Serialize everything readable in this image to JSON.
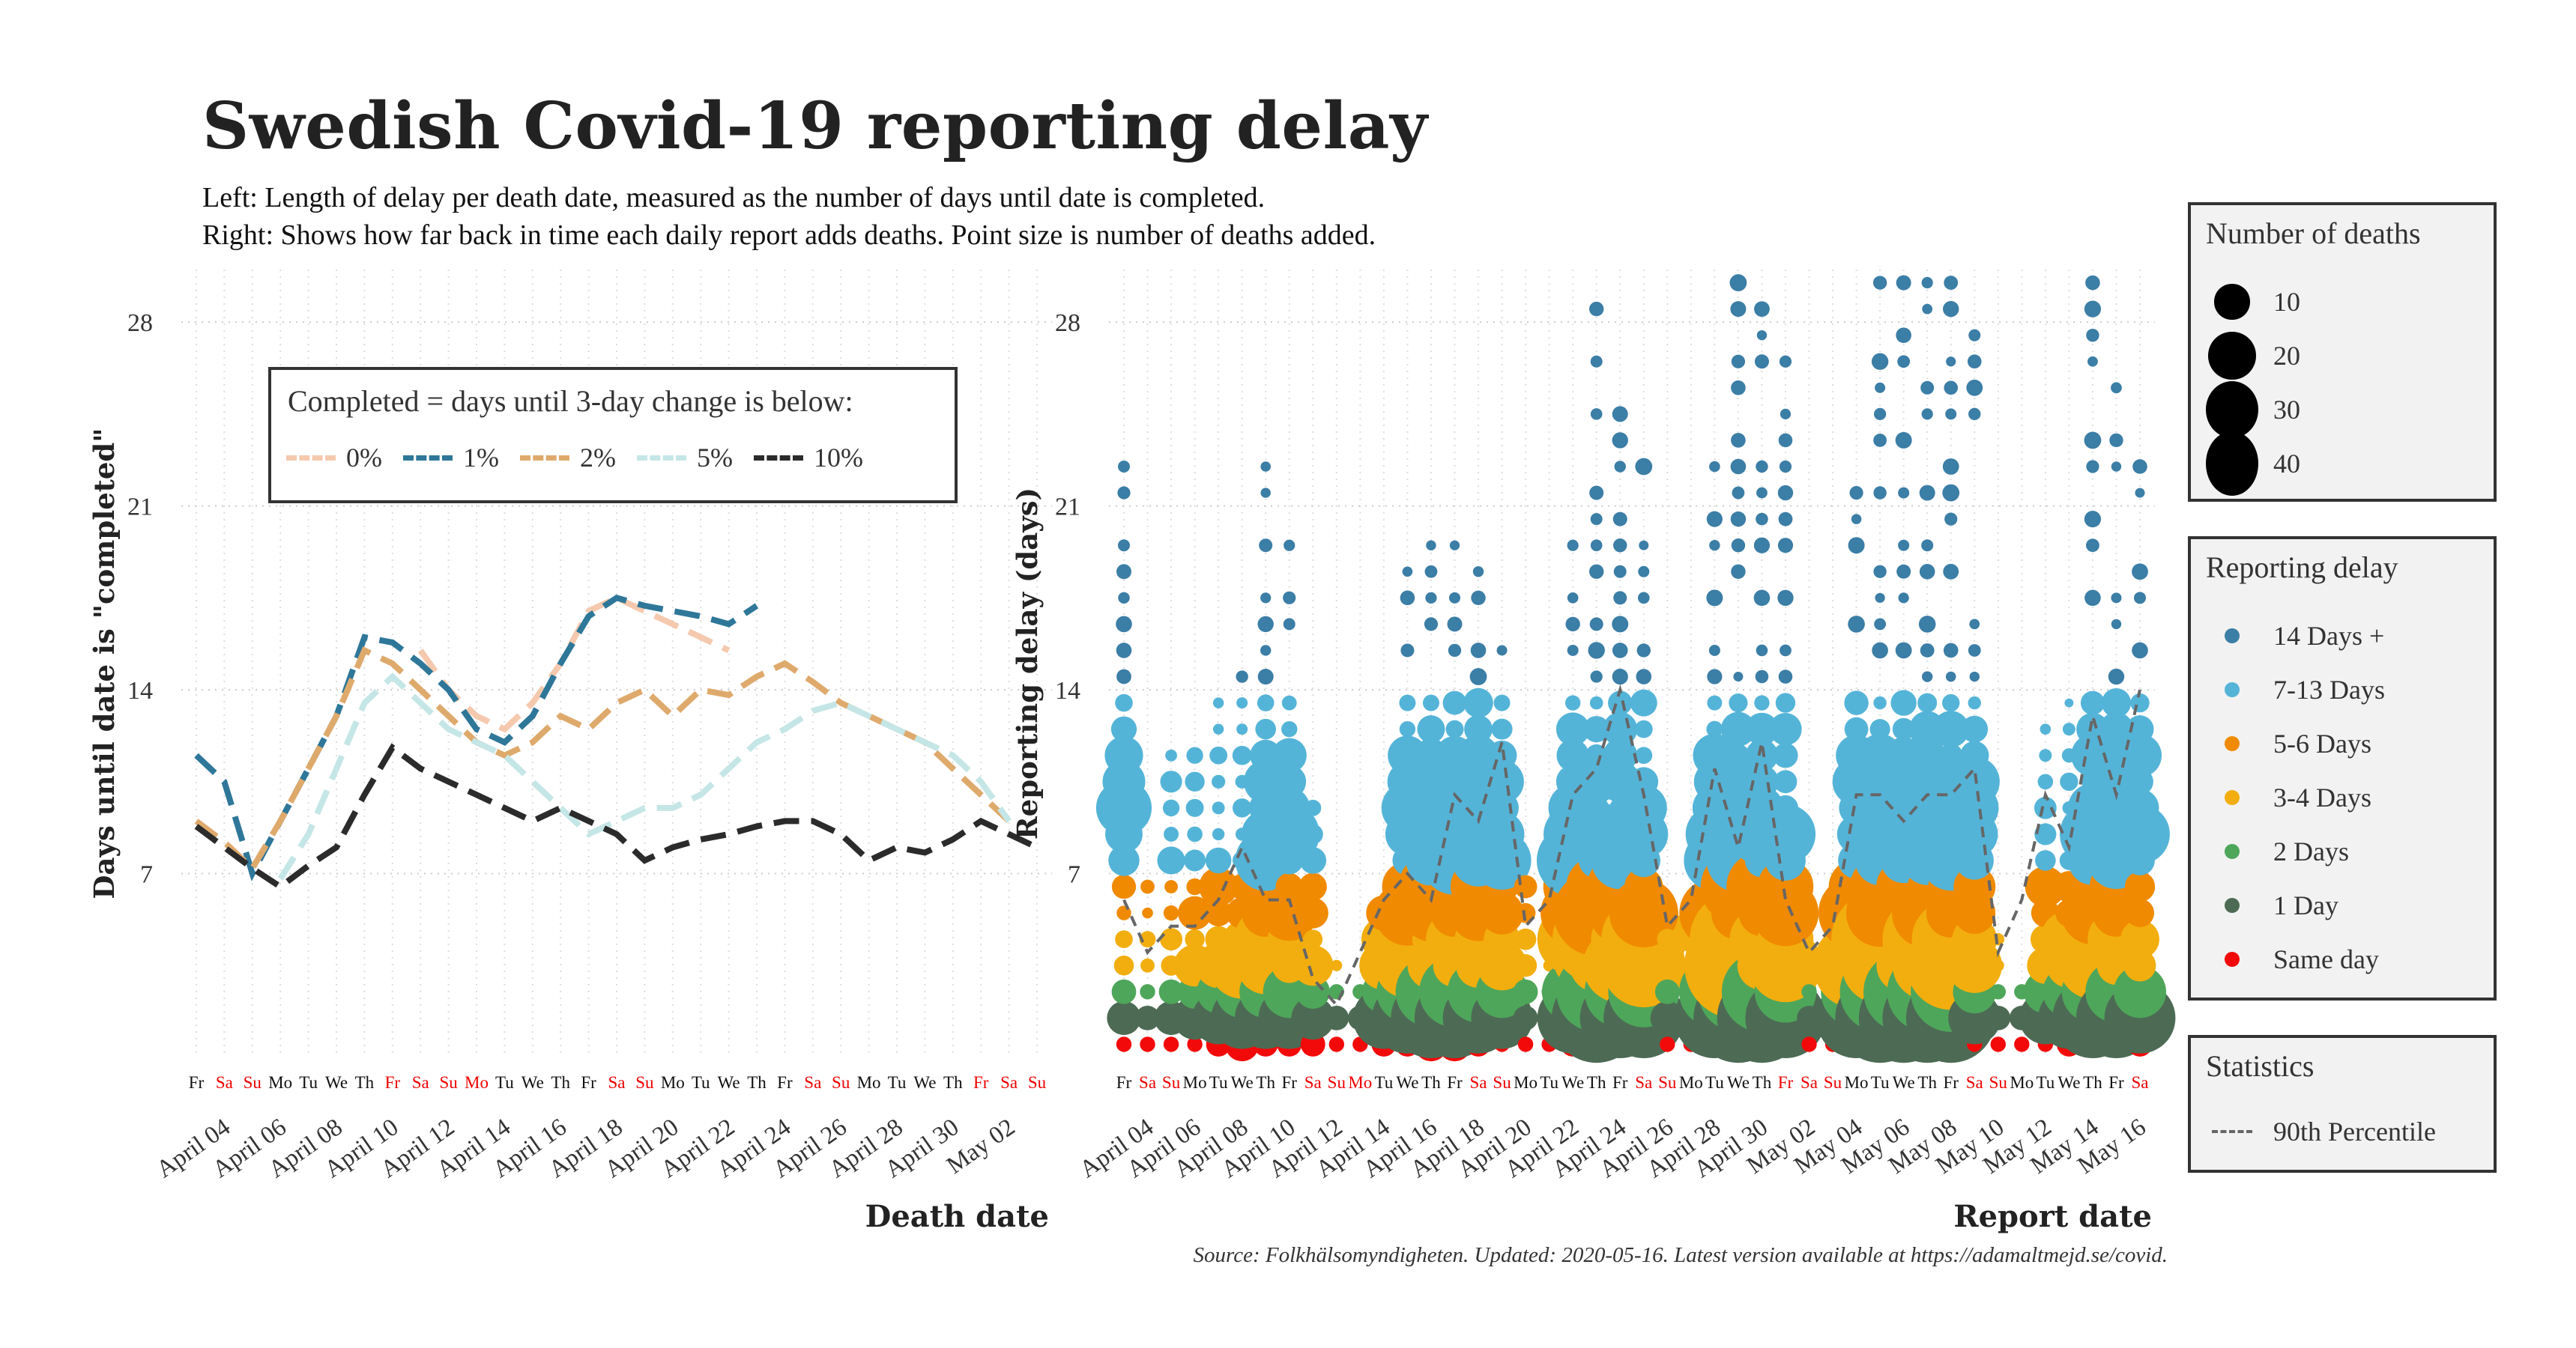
{
  "title": "Swedish Covid-19 reporting delay",
  "subtitle_lines": [
    "Left: Length of delay per death date, measured as the number of days until date is completed.",
    "Right: Shows how far back in time each daily report adds deaths. Point size is number of deaths added."
  ],
  "source": "Source: Folkhälsomyndigheten. Updated: 2020-05-16. Latest version available at https://adamaltmejd.se/covid.",
  "legend_size": {
    "title": "Number of deaths",
    "items": [
      {
        "label": "10",
        "value": 10
      },
      {
        "label": "20",
        "value": 20
      },
      {
        "label": "30",
        "value": 30
      },
      {
        "label": "40",
        "value": 40
      }
    ]
  },
  "legend_delay": {
    "title": "Reporting delay",
    "items": [
      {
        "label": "14 Days +",
        "color": "#3b7ea6"
      },
      {
        "label": "7-13 Days",
        "color": "#54b4d8"
      },
      {
        "label": "5-6 Days",
        "color": "#f08a00"
      },
      {
        "label": "3-4 Days",
        "color": "#f2ae0e"
      },
      {
        "label": "2 Days",
        "color": "#4ea65a"
      },
      {
        "label": "1 Day",
        "color": "#4d6b54"
      },
      {
        "label": "Same day",
        "color": "#f20a0a"
      }
    ]
  },
  "legend_stats": {
    "title": "Statistics",
    "items": [
      {
        "label": "90th Percentile",
        "color": "#666666"
      }
    ]
  },
  "chart_data": [
    {
      "type": "line",
      "xlabel": "Death date",
      "ylabel": "Days until date is \"completed\"",
      "ylim": [
        0,
        30
      ],
      "yticks": [
        7,
        14,
        21,
        28
      ],
      "x": [
        "2020-04-03",
        "2020-04-04",
        "2020-04-05",
        "2020-04-06",
        "2020-04-07",
        "2020-04-08",
        "2020-04-09",
        "2020-04-10",
        "2020-04-11",
        "2020-04-12",
        "2020-04-13",
        "2020-04-14",
        "2020-04-15",
        "2020-04-16",
        "2020-04-17",
        "2020-04-18",
        "2020-04-19",
        "2020-04-20",
        "2020-04-21",
        "2020-04-22",
        "2020-04-23",
        "2020-04-24",
        "2020-04-25",
        "2020-04-26",
        "2020-04-27",
        "2020-04-28",
        "2020-04-29",
        "2020-04-30",
        "2020-05-01",
        "2020-05-02",
        "2020-05-03"
      ],
      "x_tick_labels": [
        "April 04",
        "April 06",
        "April 08",
        "April 10",
        "April 12",
        "April 14",
        "April 16",
        "April 18",
        "April 20",
        "April 22",
        "April 24",
        "April 26",
        "April 28",
        "April 30",
        "May 02"
      ],
      "weekday_labels": [
        "Fr",
        "Sa",
        "Su",
        "Mo",
        "Tu",
        "We",
        "Th",
        "Fr",
        "Sa",
        "Su",
        "Mo",
        "Tu",
        "We",
        "Th",
        "Fr",
        "Sa",
        "Su",
        "Mo",
        "Tu",
        "We",
        "Th",
        "Fr",
        "Sa",
        "Su",
        "Mo",
        "Tu",
        "We",
        "Th",
        "Fr",
        "Sa",
        "Su"
      ],
      "weekday_colors": [
        "#111",
        "#e00",
        "#e00",
        "#111",
        "#111",
        "#111",
        "#111",
        "#e00",
        "#e00",
        "#e00",
        "#e00",
        "#111",
        "#111",
        "#111",
        "#111",
        "#e00",
        "#e00",
        "#111",
        "#111",
        "#111",
        "#111",
        "#111",
        "#e00",
        "#e00",
        "#111",
        "#111",
        "#111",
        "#111",
        "#e00",
        "#e00",
        "#e00"
      ],
      "legend_title": "Completed = days until 3-day change is below:",
      "series": [
        {
          "name": "0%",
          "color": "#f5c9ae",
          "values": [
            null,
            null,
            null,
            null,
            null,
            null,
            null,
            null,
            15.5,
            14,
            13,
            12.5,
            13.5,
            15,
            17,
            17.5,
            17,
            16.5,
            16,
            15.5,
            null,
            null,
            null,
            null,
            null,
            null,
            null,
            null,
            null,
            null,
            null
          ]
        },
        {
          "name": "1%",
          "color": "#2e7799",
          "values": [
            11.5,
            10.5,
            7,
            9,
            11,
            13,
            16,
            15.8,
            15,
            14,
            12.5,
            12,
            13,
            15,
            16.8,
            17.5,
            17.2,
            17,
            16.8,
            16.5,
            17.2,
            null,
            null,
            null,
            null,
            null,
            null,
            null,
            null,
            null,
            null
          ]
        },
        {
          "name": "2%",
          "color": "#deaa6c",
          "values": [
            9,
            8.2,
            7.2,
            9,
            11,
            13,
            15.5,
            15,
            14,
            13,
            12,
            11.5,
            12,
            13,
            12.5,
            13.5,
            14,
            13,
            14,
            13.8,
            14.5,
            15,
            14.3,
            13.5,
            13,
            12.5,
            12,
            11,
            10,
            9,
            null
          ]
        },
        {
          "name": "5%",
          "color": "#c5e6e6",
          "values": [
            null,
            null,
            null,
            6.8,
            8.5,
            11,
            13.5,
            14.5,
            13.5,
            12.5,
            12,
            11.5,
            10.5,
            9.5,
            8.5,
            9,
            9.5,
            9.5,
            10,
            11,
            12,
            12.5,
            13.2,
            13.5,
            13,
            12.5,
            12,
            11.5,
            10.5,
            9,
            null
          ]
        },
        {
          "name": "10%",
          "color": "#2b2b2b",
          "values": [
            8.8,
            8,
            7.2,
            6.5,
            7.3,
            8,
            10,
            11.8,
            11,
            10.5,
            10,
            9.5,
            9,
            9.5,
            9,
            8.5,
            7.5,
            8,
            8.3,
            8.5,
            8.8,
            9,
            9,
            8.5,
            7.5,
            8,
            7.8,
            8.3,
            9,
            8.5,
            8
          ]
        }
      ]
    },
    {
      "type": "scatter",
      "xlabel": "Report date",
      "ylabel": "Reporting delay (days)",
      "ylim": [
        0,
        30
      ],
      "yticks": [
        7,
        14,
        21,
        28
      ],
      "x": [
        "2020-04-03",
        "2020-04-04",
        "2020-04-05",
        "2020-04-06",
        "2020-04-07",
        "2020-04-08",
        "2020-04-09",
        "2020-04-10",
        "2020-04-11",
        "2020-04-12",
        "2020-04-13",
        "2020-04-14",
        "2020-04-15",
        "2020-04-16",
        "2020-04-17",
        "2020-04-18",
        "2020-04-19",
        "2020-04-20",
        "2020-04-21",
        "2020-04-22",
        "2020-04-23",
        "2020-04-24",
        "2020-04-25",
        "2020-04-26",
        "2020-04-27",
        "2020-04-28",
        "2020-04-29",
        "2020-04-30",
        "2020-05-01",
        "2020-05-02",
        "2020-05-03",
        "2020-05-04",
        "2020-05-05",
        "2020-05-06",
        "2020-05-07",
        "2020-05-08",
        "2020-05-09",
        "2020-05-10",
        "2020-05-11",
        "2020-05-12",
        "2020-05-13",
        "2020-05-14",
        "2020-05-15",
        "2020-05-16"
      ],
      "x_tick_labels": [
        "April 04",
        "April 06",
        "April 08",
        "April 10",
        "April 12",
        "April 14",
        "April 16",
        "April 18",
        "April 20",
        "April 22",
        "April 24",
        "April 26",
        "April 28",
        "April 30",
        "May 02",
        "May 04",
        "May 06",
        "May 08",
        "May 10",
        "May 12",
        "May 14",
        "May 16"
      ],
      "weekday_labels": [
        "Fr",
        "Sa",
        "Su",
        "Mo",
        "Tu",
        "We",
        "Th",
        "Fr",
        "Sa",
        "Su",
        "Mo",
        "Tu",
        "We",
        "Th",
        "Fr",
        "Sa",
        "Su",
        "Mo",
        "Tu",
        "We",
        "Th",
        "Fr",
        "Sa",
        "Su",
        "Mo",
        "Tu",
        "We",
        "Th",
        "Fr",
        "Sa",
        "Su",
        "Mo",
        "Tu",
        "We",
        "Th",
        "Fr",
        "Sa",
        "Su",
        "Mo",
        "Tu",
        "We",
        "Th",
        "Fr",
        "Sa"
      ],
      "weekday_colors": [
        "#111",
        "#e00",
        "#e00",
        "#111",
        "#111",
        "#111",
        "#111",
        "#111",
        "#e00",
        "#e00",
        "#e00",
        "#111",
        "#111",
        "#111",
        "#111",
        "#e00",
        "#e00",
        "#111",
        "#111",
        "#111",
        "#111",
        "#111",
        "#e00",
        "#e00",
        "#111",
        "#111",
        "#111",
        "#111",
        "#e00",
        "#e00",
        "#e00",
        "#111",
        "#111",
        "#111",
        "#111",
        "#111",
        "#e00",
        "#e00",
        "#111",
        "#111",
        "#111",
        "#111",
        "#111",
        "#e00"
      ],
      "report_max_delay": [
        22,
        6,
        11,
        11,
        13,
        14,
        22,
        19,
        9,
        3,
        2,
        5,
        18,
        19,
        19,
        18,
        15,
        6,
        3,
        19,
        28,
        24,
        22,
        5,
        4,
        22,
        29,
        28,
        26,
        2,
        3,
        21,
        29,
        29,
        29,
        29,
        27,
        4,
        2,
        12,
        13,
        29,
        25,
        22
      ],
      "counts_by_delay": {
        "same_day": [
          1,
          1,
          1,
          1,
          2,
          3,
          2,
          2,
          2,
          1,
          1,
          2,
          2,
          3,
          3,
          2,
          1,
          1,
          1,
          2,
          2,
          2,
          2,
          1,
          1,
          2,
          2,
          3,
          2,
          1,
          1,
          2,
          2,
          2,
          2,
          3,
          1,
          1,
          1,
          1,
          2,
          2,
          2,
          2
        ],
        "one_day": [
          3,
          2,
          3,
          4,
          5,
          6,
          6,
          6,
          4,
          2,
          2,
          6,
          7,
          8,
          8,
          7,
          6,
          2,
          2,
          7,
          9,
          8,
          8,
          3,
          3,
          8,
          9,
          9,
          8,
          2,
          2,
          8,
          9,
          9,
          9,
          9,
          5,
          2,
          2,
          5,
          6,
          8,
          8,
          7
        ],
        "two_days": [
          2,
          1,
          2,
          3,
          4,
          5,
          5,
          5,
          3,
          1,
          1,
          4,
          6,
          7,
          7,
          6,
          5,
          2,
          1,
          6,
          8,
          7,
          7,
          2,
          2,
          7,
          8,
          8,
          6,
          1,
          1,
          7,
          8,
          8,
          8,
          8,
          4,
          1,
          1,
          4,
          5,
          6,
          6,
          5
        ],
        "p90": [
          6,
          4,
          5,
          5,
          6,
          8,
          6,
          6,
          3,
          2,
          4,
          6,
          7,
          6,
          10,
          9,
          12,
          5,
          6,
          10,
          11,
          14,
          10,
          5,
          6,
          11,
          8,
          12,
          6,
          4,
          5,
          10,
          10,
          9,
          10,
          10,
          11,
          4,
          6,
          10,
          8,
          13,
          10,
          14
        ]
      }
    }
  ]
}
